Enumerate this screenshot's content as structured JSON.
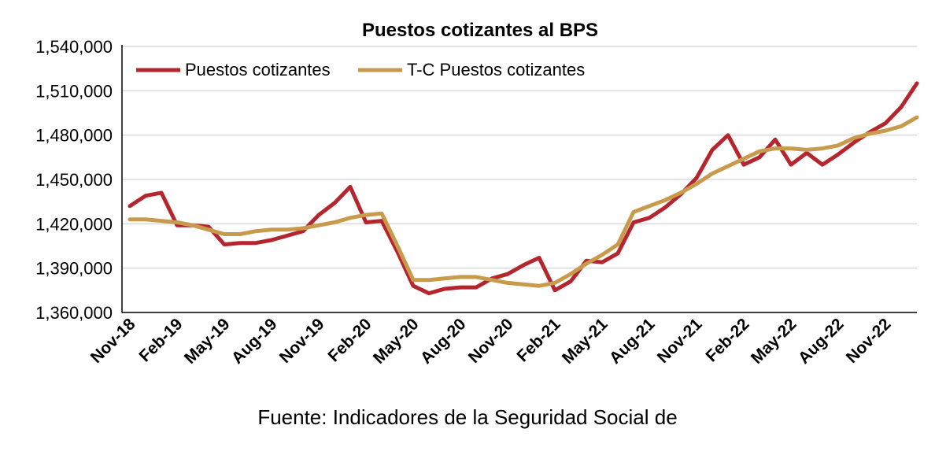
{
  "chart_data": {
    "type": "line",
    "title": "Puestos cotizantes al BPS",
    "source": "Fuente: Indicadores de la Seguridad Social de",
    "xlabel": "",
    "ylabel": "",
    "ylim": [
      1360000,
      1540000
    ],
    "yticks": [
      1360000,
      1390000,
      1420000,
      1450000,
      1480000,
      1510000,
      1540000
    ],
    "ytick_labels": [
      "1,360,000",
      "1,390,000",
      "1,420,000",
      "1,450,000",
      "1,480,000",
      "1,510,000",
      "1,540,000"
    ],
    "x": [
      "Nov-18",
      "Dec-18",
      "Jan-19",
      "Feb-19",
      "Mar-19",
      "Apr-19",
      "May-19",
      "Jun-19",
      "Jul-19",
      "Aug-19",
      "Sep-19",
      "Oct-19",
      "Nov-19",
      "Dec-19",
      "Jan-20",
      "Feb-20",
      "Mar-20",
      "Apr-20",
      "May-20",
      "Jun-20",
      "Jul-20",
      "Aug-20",
      "Sep-20",
      "Oct-20",
      "Nov-20",
      "Dec-20",
      "Jan-21",
      "Feb-21",
      "Mar-21",
      "Apr-21",
      "May-21",
      "Jun-21",
      "Jul-21",
      "Aug-21",
      "Sep-21",
      "Oct-21",
      "Nov-21",
      "Dec-21",
      "Jan-22",
      "Feb-22",
      "Mar-22",
      "Apr-22",
      "May-22",
      "Jun-22",
      "Jul-22",
      "Aug-22",
      "Sep-22",
      "Oct-22",
      "Nov-22",
      "Dec-22",
      "Jan-23"
    ],
    "xtick_labels": [
      "Nov-18",
      "Feb-19",
      "May-19",
      "Aug-19",
      "Nov-19",
      "Feb-20",
      "May-20",
      "Aug-20",
      "Nov-20",
      "Feb-21",
      "May-21",
      "Aug-21",
      "Nov-21",
      "Feb-22",
      "May-22",
      "Aug-22",
      "Nov-22"
    ],
    "grid": true,
    "legend": "top-left",
    "series": [
      {
        "name": "Puestos cotizantes",
        "color": "#B5252E",
        "values": [
          1432000,
          1439000,
          1441000,
          1419000,
          1419000,
          1418000,
          1406000,
          1407000,
          1407000,
          1409000,
          1412000,
          1415000,
          1426000,
          1434000,
          1445000,
          1421000,
          1422000,
          1401000,
          1378000,
          1373000,
          1376000,
          1377000,
          1377000,
          1383000,
          1386000,
          1392000,
          1397000,
          1375000,
          1381000,
          1395000,
          1394000,
          1400000,
          1421000,
          1424000,
          1431000,
          1440000,
          1451000,
          1470000,
          1480000,
          1460000,
          1465000,
          1477000,
          1460000,
          1468000,
          1460000,
          1467000,
          1475000,
          1482000,
          1488000,
          1499000,
          1515000
        ]
      },
      {
        "name": "T-C Puestos cotizantes",
        "color": "#C89B4C",
        "values": [
          1423000,
          1423000,
          1422000,
          1421000,
          1419000,
          1416000,
          1413000,
          1413000,
          1415000,
          1416000,
          1416000,
          1417000,
          1419000,
          1421000,
          1424000,
          1426000,
          1427000,
          1405000,
          1382000,
          1382000,
          1383000,
          1384000,
          1384000,
          1382000,
          1380000,
          1379000,
          1378000,
          1380000,
          1386000,
          1393000,
          1399000,
          1406000,
          1428000,
          1432000,
          1436000,
          1441000,
          1447000,
          1454000,
          1459000,
          1464000,
          1469000,
          1471000,
          1471000,
          1470000,
          1471000,
          1473000,
          1478000,
          1481000,
          1483000,
          1486000,
          1492000
        ]
      }
    ]
  }
}
